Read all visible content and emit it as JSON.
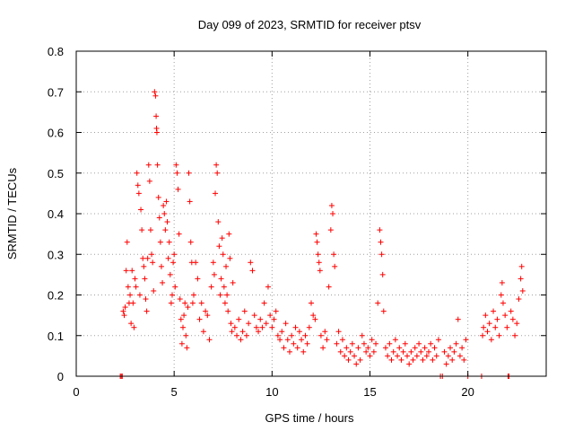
{
  "chart_data": {
    "type": "scatter",
    "title": "Day 099 of 2023, SRMTID for receiver ptsv",
    "xlabel": "GPS time / hours",
    "ylabel": "SRMTID / TECUs",
    "xlim": [
      0,
      24
    ],
    "ylim": [
      0,
      0.8
    ],
    "xticks": [
      "0",
      "5",
      "10",
      "15",
      "20"
    ],
    "yticks": [
      "0",
      "0.1",
      "0.2",
      "0.3",
      "0.4",
      "0.5",
      "0.6",
      "0.7",
      "0.8"
    ],
    "grid": true,
    "marker": "+",
    "color": "#ff0000",
    "series": [
      {
        "name": "SRMTID",
        "points": [
          [
            2.25,
            0.0
          ],
          [
            2.3,
            0.0
          ],
          [
            2.35,
            0.0
          ],
          [
            2.4,
            0.16
          ],
          [
            2.45,
            0.15
          ],
          [
            2.5,
            0.17
          ],
          [
            2.55,
            0.26
          ],
          [
            2.6,
            0.33
          ],
          [
            2.65,
            0.22
          ],
          [
            2.7,
            0.18
          ],
          [
            2.75,
            0.2
          ],
          [
            2.8,
            0.13
          ],
          [
            2.85,
            0.26
          ],
          [
            2.9,
            0.18
          ],
          [
            2.95,
            0.12
          ],
          [
            3.0,
            0.24
          ],
          [
            3.05,
            0.22
          ],
          [
            3.1,
            0.5
          ],
          [
            3.15,
            0.47
          ],
          [
            3.2,
            0.45
          ],
          [
            3.25,
            0.2
          ],
          [
            3.3,
            0.41
          ],
          [
            3.35,
            0.36
          ],
          [
            3.4,
            0.29
          ],
          [
            3.45,
            0.27
          ],
          [
            3.5,
            0.24
          ],
          [
            3.55,
            0.19
          ],
          [
            3.6,
            0.16
          ],
          [
            3.65,
            0.29
          ],
          [
            3.7,
            0.52
          ],
          [
            3.75,
            0.48
          ],
          [
            3.8,
            0.36
          ],
          [
            3.85,
            0.3
          ],
          [
            3.9,
            0.28
          ],
          [
            3.95,
            0.21
          ],
          [
            4.0,
            0.7
          ],
          [
            4.05,
            0.69
          ],
          [
            4.08,
            0.64
          ],
          [
            4.1,
            0.61
          ],
          [
            4.12,
            0.6
          ],
          [
            4.15,
            0.52
          ],
          [
            4.2,
            0.44
          ],
          [
            4.25,
            0.39
          ],
          [
            4.3,
            0.33
          ],
          [
            4.35,
            0.27
          ],
          [
            4.4,
            0.23
          ],
          [
            4.45,
            0.42
          ],
          [
            4.5,
            0.4
          ],
          [
            4.55,
            0.36
          ],
          [
            4.6,
            0.43
          ],
          [
            4.65,
            0.38
          ],
          [
            4.7,
            0.29
          ],
          [
            4.75,
            0.33
          ],
          [
            4.8,
            0.25
          ],
          [
            4.85,
            0.18
          ],
          [
            4.9,
            0.2
          ],
          [
            4.95,
            0.28
          ],
          [
            5.0,
            0.3
          ],
          [
            5.05,
            0.22
          ],
          [
            5.1,
            0.52
          ],
          [
            5.15,
            0.5
          ],
          [
            5.2,
            0.46
          ],
          [
            5.25,
            0.35
          ],
          [
            5.3,
            0.19
          ],
          [
            5.35,
            0.14
          ],
          [
            5.4,
            0.08
          ],
          [
            5.45,
            0.12
          ],
          [
            5.5,
            0.15
          ],
          [
            5.55,
            0.18
          ],
          [
            5.6,
            0.1
          ],
          [
            5.65,
            0.07
          ],
          [
            5.7,
            0.17
          ],
          [
            5.75,
            0.5
          ],
          [
            5.8,
            0.43
          ],
          [
            5.85,
            0.33
          ],
          [
            5.9,
            0.28
          ],
          [
            5.95,
            0.18
          ],
          [
            6.0,
            0.2
          ],
          [
            6.1,
            0.28
          ],
          [
            6.2,
            0.24
          ],
          [
            6.3,
            0.14
          ],
          [
            6.4,
            0.18
          ],
          [
            6.5,
            0.11
          ],
          [
            6.6,
            0.16
          ],
          [
            6.7,
            0.15
          ],
          [
            6.8,
            0.09
          ],
          [
            6.9,
            0.22
          ],
          [
            7.0,
            0.28
          ],
          [
            7.05,
            0.25
          ],
          [
            7.1,
            0.45
          ],
          [
            7.15,
            0.52
          ],
          [
            7.2,
            0.5
          ],
          [
            7.25,
            0.38
          ],
          [
            7.3,
            0.32
          ],
          [
            7.35,
            0.2
          ],
          [
            7.4,
            0.24
          ],
          [
            7.45,
            0.34
          ],
          [
            7.5,
            0.3
          ],
          [
            7.55,
            0.22
          ],
          [
            7.6,
            0.18
          ],
          [
            7.65,
            0.27
          ],
          [
            7.7,
            0.2
          ],
          [
            7.75,
            0.16
          ],
          [
            7.8,
            0.35
          ],
          [
            7.85,
            0.29
          ],
          [
            7.9,
            0.13
          ],
          [
            7.95,
            0.11
          ],
          [
            8.0,
            0.23
          ],
          [
            8.1,
            0.12
          ],
          [
            8.2,
            0.1
          ],
          [
            8.3,
            0.14
          ],
          [
            8.4,
            0.09
          ],
          [
            8.5,
            0.11
          ],
          [
            8.6,
            0.16
          ],
          [
            8.7,
            0.1
          ],
          [
            8.8,
            0.13
          ],
          [
            8.9,
            0.28
          ],
          [
            9.0,
            0.26
          ],
          [
            9.1,
            0.15
          ],
          [
            9.2,
            0.12
          ],
          [
            9.3,
            0.11
          ],
          [
            9.4,
            0.14
          ],
          [
            9.5,
            0.12
          ],
          [
            9.6,
            0.18
          ],
          [
            9.7,
            0.13
          ],
          [
            9.8,
            0.22
          ],
          [
            9.9,
            0.15
          ],
          [
            10.0,
            0.12
          ],
          [
            10.1,
            0.14
          ],
          [
            10.2,
            0.16
          ],
          [
            10.3,
            0.1
          ],
          [
            10.4,
            0.09
          ],
          [
            10.5,
            0.11
          ],
          [
            10.6,
            0.07
          ],
          [
            10.7,
            0.13
          ],
          [
            10.8,
            0.09
          ],
          [
            10.9,
            0.06
          ],
          [
            11.0,
            0.1
          ],
          [
            11.1,
            0.08
          ],
          [
            11.2,
            0.12
          ],
          [
            11.3,
            0.07
          ],
          [
            11.4,
            0.11
          ],
          [
            11.5,
            0.09
          ],
          [
            11.6,
            0.06
          ],
          [
            11.7,
            0.1
          ],
          [
            11.8,
            0.08
          ],
          [
            11.9,
            0.12
          ],
          [
            12.0,
            0.18
          ],
          [
            12.1,
            0.15
          ],
          [
            12.2,
            0.14
          ],
          [
            12.25,
            0.35
          ],
          [
            12.3,
            0.33
          ],
          [
            12.35,
            0.3
          ],
          [
            12.4,
            0.28
          ],
          [
            12.45,
            0.26
          ],
          [
            12.5,
            0.1
          ],
          [
            12.6,
            0.07
          ],
          [
            12.7,
            0.11
          ],
          [
            12.8,
            0.09
          ],
          [
            12.9,
            0.22
          ],
          [
            13.0,
            0.36
          ],
          [
            13.05,
            0.42
          ],
          [
            13.1,
            0.4
          ],
          [
            13.15,
            0.3
          ],
          [
            13.2,
            0.27
          ],
          [
            13.3,
            0.08
          ],
          [
            13.4,
            0.11
          ],
          [
            13.5,
            0.06
          ],
          [
            13.6,
            0.09
          ],
          [
            13.7,
            0.05
          ],
          [
            13.8,
            0.07
          ],
          [
            13.9,
            0.04
          ],
          [
            14.0,
            0.06
          ],
          [
            14.1,
            0.08
          ],
          [
            14.2,
            0.05
          ],
          [
            14.3,
            0.03
          ],
          [
            14.4,
            0.07
          ],
          [
            14.5,
            0.04
          ],
          [
            14.6,
            0.1
          ],
          [
            14.7,
            0.08
          ],
          [
            14.8,
            0.06
          ],
          [
            14.9,
            0.07
          ],
          [
            15.0,
            0.05
          ],
          [
            15.1,
            0.09
          ],
          [
            15.2,
            0.06
          ],
          [
            15.3,
            0.08
          ],
          [
            15.4,
            0.18
          ],
          [
            15.5,
            0.36
          ],
          [
            15.55,
            0.33
          ],
          [
            15.6,
            0.3
          ],
          [
            15.65,
            0.25
          ],
          [
            15.7,
            0.16
          ],
          [
            15.8,
            0.07
          ],
          [
            15.9,
            0.05
          ],
          [
            16.0,
            0.08
          ],
          [
            16.1,
            0.04
          ],
          [
            16.2,
            0.06
          ],
          [
            16.3,
            0.09
          ],
          [
            16.4,
            0.05
          ],
          [
            16.5,
            0.07
          ],
          [
            16.6,
            0.04
          ],
          [
            16.7,
            0.06
          ],
          [
            16.8,
            0.08
          ],
          [
            16.9,
            0.05
          ],
          [
            17.0,
            0.03
          ],
          [
            17.1,
            0.06
          ],
          [
            17.2,
            0.04
          ],
          [
            17.3,
            0.07
          ],
          [
            17.4,
            0.05
          ],
          [
            17.5,
            0.08
          ],
          [
            17.6,
            0.06
          ],
          [
            17.7,
            0.04
          ],
          [
            17.8,
            0.07
          ],
          [
            17.9,
            0.05
          ],
          [
            18.0,
            0.06
          ],
          [
            18.1,
            0.08
          ],
          [
            18.2,
            0.04
          ],
          [
            18.3,
            0.07
          ],
          [
            18.4,
            0.05
          ],
          [
            18.5,
            0.09
          ],
          [
            18.6,
            0.0
          ],
          [
            18.7,
            0.0
          ],
          [
            18.8,
            0.06
          ],
          [
            18.9,
            0.03
          ],
          [
            19.0,
            0.05
          ],
          [
            19.1,
            0.07
          ],
          [
            19.2,
            0.04
          ],
          [
            19.3,
            0.06
          ],
          [
            19.4,
            0.08
          ],
          [
            19.5,
            0.14
          ],
          [
            19.6,
            0.05
          ],
          [
            19.7,
            0.07
          ],
          [
            19.8,
            0.04
          ],
          [
            19.9,
            0.09
          ],
          [
            20.0,
            0.0
          ],
          [
            20.7,
            0.0
          ],
          [
            20.75,
            0.1
          ],
          [
            20.8,
            0.12
          ],
          [
            20.9,
            0.15
          ],
          [
            21.0,
            0.11
          ],
          [
            21.1,
            0.13
          ],
          [
            21.2,
            0.09
          ],
          [
            21.3,
            0.16
          ],
          [
            21.4,
            0.12
          ],
          [
            21.5,
            0.14
          ],
          [
            21.6,
            0.1
          ],
          [
            21.7,
            0.2
          ],
          [
            21.75,
            0.23
          ],
          [
            21.8,
            0.18
          ],
          [
            21.9,
            0.15
          ],
          [
            22.0,
            0.12
          ],
          [
            22.05,
            0.0
          ],
          [
            22.1,
            0.0
          ],
          [
            22.2,
            0.16
          ],
          [
            22.3,
            0.14
          ],
          [
            22.4,
            0.1
          ],
          [
            22.5,
            0.13
          ],
          [
            22.6,
            0.19
          ],
          [
            22.7,
            0.24
          ],
          [
            22.75,
            0.27
          ],
          [
            22.8,
            0.21
          ]
        ]
      }
    ]
  }
}
